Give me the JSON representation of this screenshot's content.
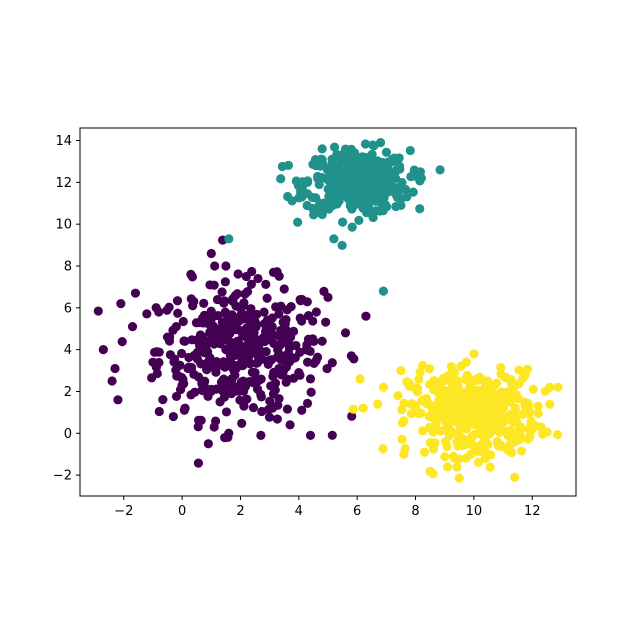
{
  "chart_data": {
    "type": "scatter",
    "title": "",
    "xlabel": "",
    "ylabel": "",
    "xlim": [
      -3.5,
      13.5
    ],
    "ylim": [
      -3,
      14.6
    ],
    "x_ticks": [
      -2,
      0,
      2,
      4,
      6,
      8,
      10,
      12
    ],
    "x_tick_labels": [
      "−2",
      "0",
      "2",
      "4",
      "6",
      "8",
      "10",
      "12"
    ],
    "y_ticks": [
      -2,
      0,
      2,
      4,
      6,
      8,
      10,
      12,
      14
    ],
    "y_tick_labels": [
      "−2",
      "0",
      "2",
      "4",
      "6",
      "8",
      "10",
      "12",
      "14"
    ],
    "grid": false,
    "legend": "none",
    "series": [
      {
        "color": "#440154",
        "cluster_center": [
          2.0,
          4.0
        ],
        "cluster_spread": [
          1.4,
          1.6
        ],
        "points": [
          [
            -2.7,
            4.0
          ],
          [
            -2.4,
            2.5
          ],
          [
            -2.3,
            3.1
          ],
          [
            -2.2,
            1.6
          ],
          [
            -2.1,
            6.2
          ],
          [
            -1.7,
            5.1
          ],
          [
            -1.6,
            6.7
          ],
          [
            -0.3,
            0.8
          ],
          [
            0.1,
            1.2
          ],
          [
            1.0,
            8.6
          ],
          [
            1.1,
            0.3
          ],
          [
            0.9,
            -0.5
          ],
          [
            1.6,
            0.0
          ],
          [
            2.7,
            -0.1
          ],
          [
            4.4,
            -0.1
          ],
          [
            3.7,
            0.4
          ],
          [
            4.1,
            1.1
          ],
          [
            5.0,
            6.5
          ],
          [
            6.3,
            5.6
          ],
          [
            5.6,
            4.8
          ],
          [
            5.8,
            3.7
          ],
          [
            4.4,
            2.6
          ],
          [
            1.5,
            8.0
          ],
          [
            2.2,
            7.5
          ],
          [
            2.6,
            7.4
          ],
          [
            3.5,
            6.9
          ],
          [
            0.3,
            7.6
          ],
          [
            -0.8,
            5.8
          ],
          [
            4.6,
            5.8
          ],
          [
            1.5,
            4.0
          ],
          [
            2.3,
            3.9
          ],
          [
            1.2,
            3.3
          ],
          [
            2.8,
            4.6
          ],
          [
            0.6,
            4.2
          ],
          [
            3.4,
            3.5
          ],
          [
            1.8,
            5.2
          ],
          [
            2.5,
            2.9
          ],
          [
            0.2,
            3.1
          ],
          [
            3.0,
            5.3
          ],
          [
            1.0,
            2.1
          ],
          [
            3.9,
            4.2
          ],
          [
            1.4,
            4.9
          ],
          [
            2.0,
            3.3
          ],
          [
            0.7,
            5.5
          ],
          [
            3.2,
            2.4
          ],
          [
            2.7,
            3.6
          ],
          [
            1.9,
            4.4
          ],
          [
            -0.5,
            4.6
          ],
          [
            4.3,
            3.4
          ],
          [
            0.0,
            2.3
          ],
          [
            3.6,
            5.9
          ],
          [
            1.3,
            1.5
          ],
          [
            2.4,
            5.7
          ],
          [
            -1.0,
            3.4
          ],
          [
            4.8,
            4.4
          ],
          [
            0.4,
            6.3
          ],
          [
            3.1,
            1.2
          ],
          [
            1.7,
            2.6
          ],
          [
            2.1,
            6.1
          ],
          [
            -0.2,
            5.1
          ],
          [
            4.0,
            2.9
          ]
        ]
      },
      {
        "color": "#21918c",
        "cluster_center": [
          6.0,
          12.0
        ],
        "cluster_spread": [
          0.9,
          0.75
        ],
        "points": [
          [
            4.8,
            13.6
          ],
          [
            6.8,
            13.9
          ],
          [
            7.2,
            13.1
          ],
          [
            8.0,
            12.3
          ],
          [
            4.1,
            11.3
          ],
          [
            5.2,
            9.3
          ],
          [
            7.5,
            10.9
          ],
          [
            5.5,
            10.1
          ],
          [
            4.3,
            12.0
          ],
          [
            8.2,
            12.2
          ],
          [
            1.6,
            9.3
          ],
          [
            6.9,
            6.8
          ],
          [
            6.0,
            12.0
          ],
          [
            5.6,
            12.4
          ],
          [
            6.4,
            11.6
          ],
          [
            5.3,
            11.8
          ],
          [
            6.7,
            12.3
          ],
          [
            5.8,
            11.3
          ],
          [
            6.2,
            12.8
          ],
          [
            5.0,
            12.2
          ],
          [
            6.9,
            11.9
          ],
          [
            5.7,
            12.7
          ],
          [
            6.5,
            11.2
          ],
          [
            5.4,
            11.5
          ],
          [
            6.1,
            12.3
          ],
          [
            7.0,
            12.5
          ],
          [
            4.7,
            11.9
          ],
          [
            5.9,
            13.0
          ],
          [
            6.3,
            11.0
          ],
          [
            6.6,
            12.9
          ]
        ]
      },
      {
        "color": "#fde725",
        "cluster_center": [
          10.0,
          1.0
        ],
        "cluster_spread": [
          1.1,
          1.0
        ],
        "points": [
          [
            6.1,
            2.6
          ],
          [
            6.2,
            1.2
          ],
          [
            6.9,
            2.2
          ],
          [
            7.5,
            3.0
          ],
          [
            7.6,
            -1.0
          ],
          [
            11.4,
            -2.1
          ],
          [
            12.6,
            2.2
          ],
          [
            10.0,
            3.8
          ],
          [
            9.1,
            -1.6
          ],
          [
            12.3,
            0.3
          ],
          [
            7.4,
            1.8
          ],
          [
            7.6,
            0.6
          ],
          [
            12.2,
            1.3
          ],
          [
            10.0,
            1.0
          ],
          [
            9.5,
            0.4
          ],
          [
            10.5,
            1.6
          ],
          [
            9.8,
            2.0
          ],
          [
            10.3,
            0.1
          ],
          [
            8.9,
            1.2
          ],
          [
            11.0,
            0.8
          ],
          [
            9.2,
            1.9
          ],
          [
            10.8,
            -0.4
          ],
          [
            9.6,
            -0.6
          ],
          [
            11.3,
            1.9
          ],
          [
            8.6,
            0.2
          ],
          [
            10.1,
            2.6
          ],
          [
            11.6,
            0.2
          ],
          [
            8.3,
            1.5
          ],
          [
            9.9,
            -1.0
          ],
          [
            10.7,
            2.3
          ],
          [
            11.8,
            1.0
          ],
          [
            8.8,
            2.4
          ],
          [
            10.4,
            -1.2
          ]
        ]
      }
    ]
  }
}
